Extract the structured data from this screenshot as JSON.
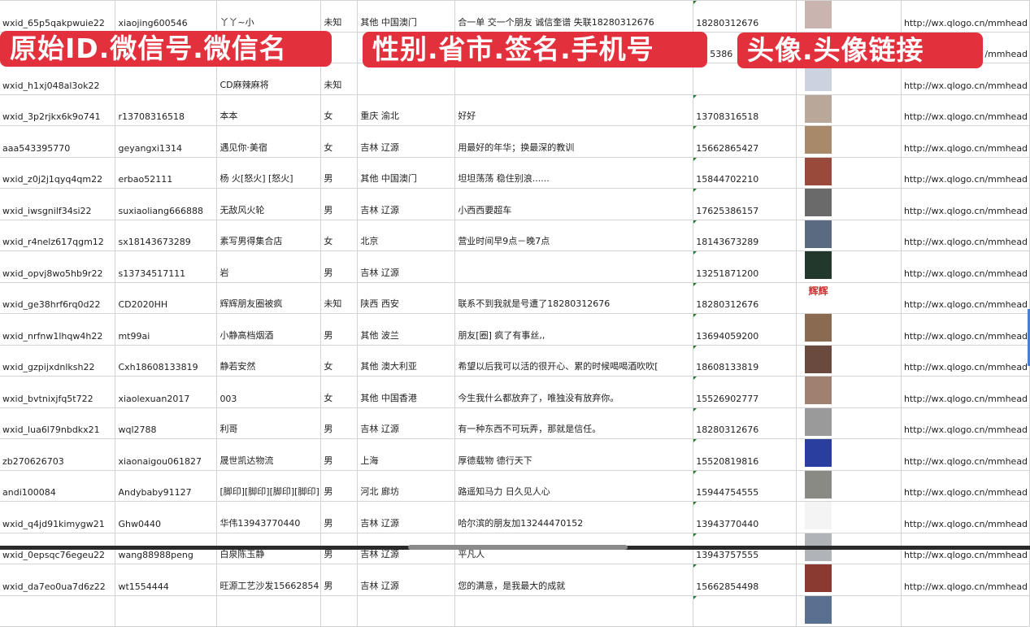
{
  "overlays": {
    "left": "原始ID.微信号.微信名",
    "middle": "性别.省市.签名.手机号",
    "right": "头像.头像链接",
    "color": "#e2313d"
  },
  "rows": [
    {
      "id": "wxid_65p5qakpwuie22",
      "wx": "xiaojing600546",
      "name": "丫丫~小",
      "sex": "未知",
      "region": "其他 中国澳门",
      "sign": "合一单 交一个朋友 诚信奎谱 失联18280312676",
      "phone": "18280312676",
      "avatar": "#c9b4b0",
      "url": "http://wx.qlogo.cn/mmhead"
    },
    {
      "id": "",
      "wx": "",
      "name": "",
      "sex": "",
      "region": "",
      "sign": "",
      "phone": "5386",
      "avatar": "#7a86b8",
      "url": "/mmhead"
    },
    {
      "id": "wxid_h1xj048al3ok22",
      "wx": "",
      "name": "CD麻辣麻将",
      "sex": "未知",
      "region": "",
      "sign": "",
      "phone": "",
      "avatar": "#ccd3e0",
      "url": "http://wx.qlogo.cn/mmhead"
    },
    {
      "id": "wxid_3p2rjkx6k9o741",
      "wx": "r13708316518",
      "name": "本本",
      "sex": "女",
      "region": "重庆 渝北",
      "sign": "好好",
      "phone": "13708316518",
      "avatar": "#b9a79a",
      "url": "http://wx.qlogo.cn/mmhead"
    },
    {
      "id": "aaa543395770",
      "wx": "geyangxi1314",
      "name": "遇见你·美宿",
      "sex": "女",
      "region": "吉林 辽源",
      "sign": "用最好的年华；换最深的教训",
      "phone": "15662865427",
      "avatar": "#a88a6a",
      "url": "http://wx.qlogo.cn/mmhead"
    },
    {
      "id": "wxid_z0j2j1qyq4qm22",
      "wx": "erbao52111",
      "name": "杨 火[怒火] [怒火]",
      "sex": "男",
      "region": "其他 中国澳门",
      "sign": "坦坦荡荡 稳住别浪......",
      "phone": "15844702210",
      "avatar": "#9a4a3a",
      "url": "http://wx.qlogo.cn/mmhead"
    },
    {
      "id": "wxid_iwsgnilf34si22",
      "wx": "suxiaoliang666888",
      "name": "无敌风火轮",
      "sex": "男",
      "region": "吉林 辽源",
      "sign": "小西西要超车",
      "phone": "17625386157",
      "avatar": "#6a6a6a",
      "url": "http://wx.qlogo.cn/mmhead"
    },
    {
      "id": "wxid_r4nelz617qgm12",
      "wx": "sx18143673289",
      "name": "素写男得集合店",
      "sex": "女",
      "region": "北京",
      "sign": "营业时间早9点－晚7点",
      "phone": "18143673289",
      "avatar": "#5a6a80",
      "url": "http://wx.qlogo.cn/mmhead"
    },
    {
      "id": "wxid_opvj8wo5hb9r22",
      "wx": "s13734517111",
      "name": "岩",
      "sex": "男",
      "region": "吉林 辽源",
      "sign": "",
      "phone": "13251871200",
      "avatar": "#23382c",
      "url": "http://wx.qlogo.cn/mmhead"
    },
    {
      "id": "wxid_ge38hrf6rq0d22",
      "wx": "CD2020HH",
      "name": "辉辉朋友圈被疯",
      "sex": "未知",
      "region": "陕西 西安",
      "sign": "联系不到我就是号遭了18280312676",
      "phone": "18280312676",
      "avatar": "#ffffff",
      "avatar_text": "辉辉",
      "url": "http://wx.qlogo.cn/mmhead"
    },
    {
      "id": "wxid_nrfnw1lhqw4h22",
      "wx": "mt99ai",
      "name": "小静高档烟酒",
      "sex": "男",
      "region": "其他 波兰",
      "sign": "朋友[圈] 疯了有事丝,,",
      "phone": "13694059200",
      "avatar": "#8a6a50",
      "url": "http://wx.qlogo.cn/mmhead"
    },
    {
      "id": "wxid_gzpijxdnlksh22",
      "wx": "Cxh18608133819",
      "name": "静若安然",
      "sex": "女",
      "region": "其他 澳大利亚",
      "sign": "希望以后我可以活的很开心、累的时候喝喝酒吹吹[",
      "phone": "18608133819",
      "avatar": "#6a4a3e",
      "url": "http://wx.qlogo.cn/mmhead"
    },
    {
      "id": "wxid_bvtnixjfq5t722",
      "wx": "xiaolexuan2017",
      "name": "003",
      "sex": "女",
      "region": "其他 中国香港",
      "sign": "今生我什么都放弃了，唯独没有放弃你。",
      "phone": "15526902777",
      "avatar": "#a08070",
      "url": "http://wx.qlogo.cn/mmhead"
    },
    {
      "id": "wxid_lua6l79nbdkx21",
      "wx": "wql2788",
      "name": "利哥",
      "sex": "男",
      "region": "吉林 辽源",
      "sign": "有一种东西不可玩弄，那就是信任。",
      "phone": "18280312676",
      "avatar": "#9a9a9a",
      "url": "http://wx.qlogo.cn/mmhead"
    },
    {
      "id": "zb270626703",
      "wx": "xiaonaigou061827",
      "name": "晟世凯达物流",
      "sex": "男",
      "region": "上海",
      "sign": "厚德载物 德行天下",
      "phone": "15520819816",
      "avatar": "#2a3ea0",
      "url": "http://wx.qlogo.cn/mmhead"
    },
    {
      "id": "andi100084",
      "wx": "Andybaby91127",
      "name": "[脚印][脚印][脚印][脚印]",
      "sex": "男",
      "region": "河北 廊坊",
      "sign": "路遥知马力 日久见人心",
      "phone": "15944754555",
      "avatar": "#8a8a84",
      "url": "http://wx.qlogo.cn/mmhead"
    },
    {
      "id": "wxid_q4jd91kimygw21",
      "wx": "Ghw0440",
      "name": "华伟13943770440",
      "sex": "男",
      "region": "吉林 辽源",
      "sign": "哈尔滨的朋友加13244470152",
      "phone": "13943770440",
      "avatar": "#f4f4f4",
      "url": "http://wx.qlogo.cn/mmhead"
    },
    {
      "id": "wxid_0epsqc76egeu22",
      "wx": "wang88988peng",
      "name": "白泉陈玉静",
      "sex": "男",
      "region": "吉林 辽源",
      "sign": "平凡人",
      "phone": "13943757555",
      "avatar": "#b0b4b8",
      "url": "http://wx.qlogo.cn/mmhead"
    },
    {
      "id": "wxid_da7eo0ua7d6z22",
      "wx": "wt1554444",
      "name": "旺源工艺沙发15662854",
      "sex": "男",
      "region": "吉林 辽源",
      "sign": "您的满意，是我最大的成就",
      "phone": "15662854498",
      "avatar": "#8a3a30",
      "url": "http://wx.qlogo.cn/mmhead"
    },
    {
      "id": "",
      "wx": "",
      "name": "",
      "sex": "",
      "region": "",
      "sign": "",
      "phone": "",
      "avatar": "#5a7090",
      "url": ""
    }
  ]
}
